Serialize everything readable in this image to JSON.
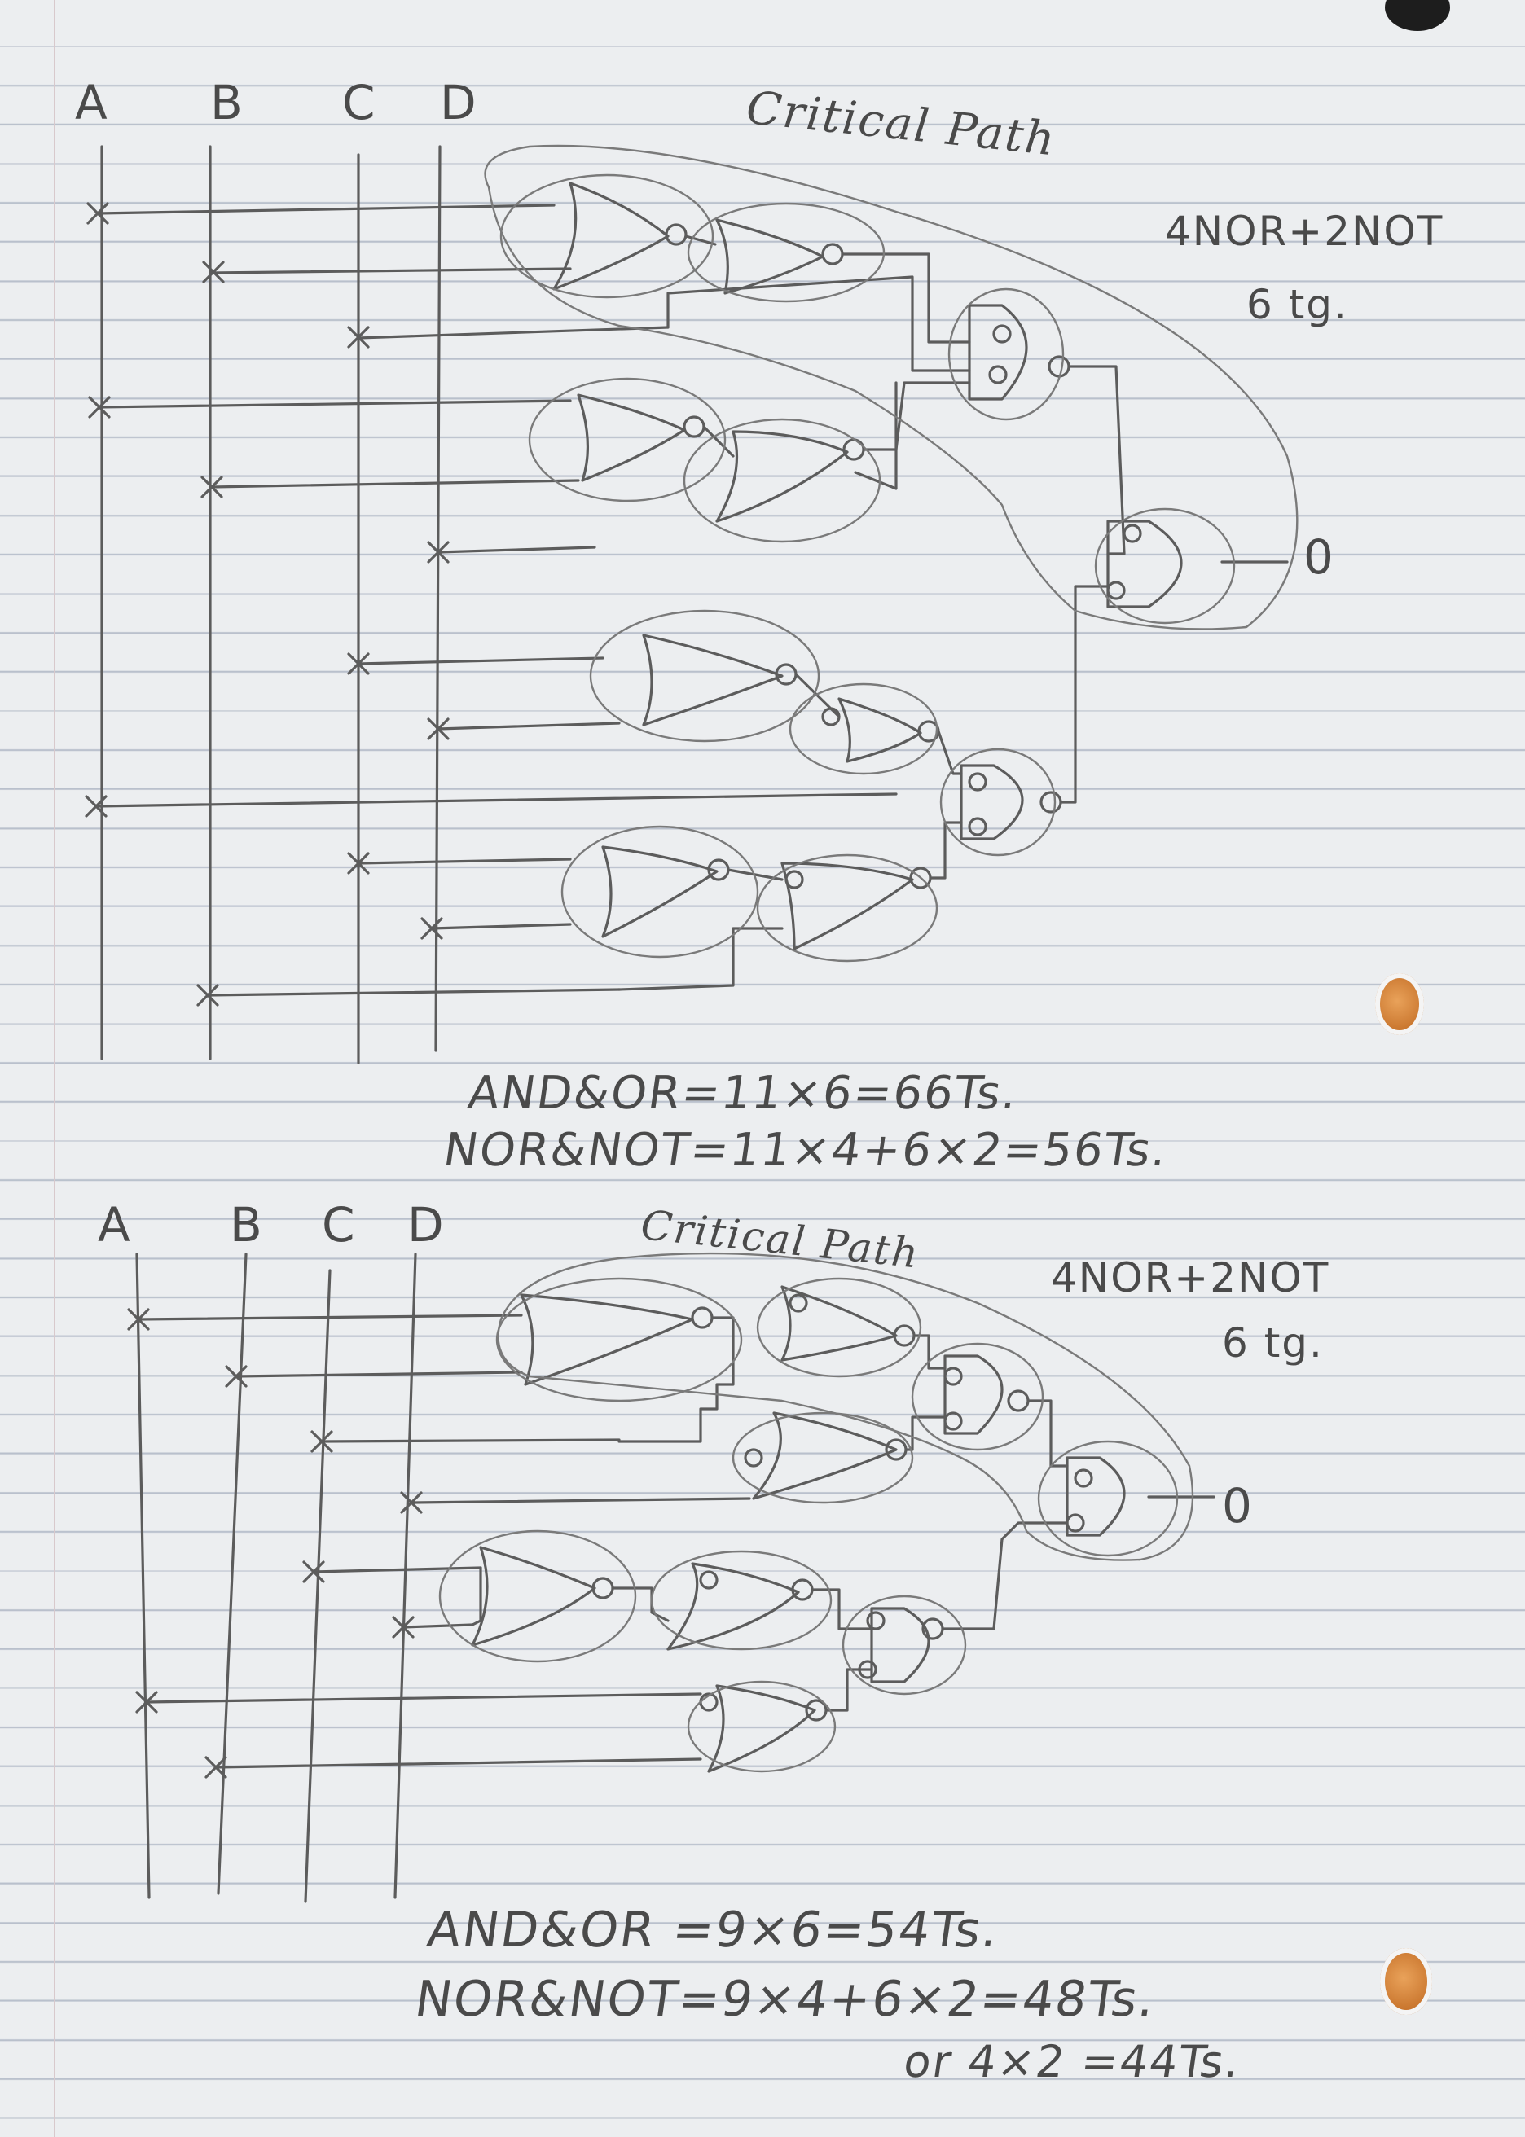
{
  "diagrams": [
    {
      "inputs": [
        "A",
        "B",
        "C",
        "D"
      ],
      "critical_path_label": "Critical Path",
      "gate_count_label": "4NOR+2NOT",
      "tg_label": "6 tg.",
      "output_label": "0",
      "formulas": [
        "AND&OR=11×6=66Ts.",
        "NOR&NOT=11×4+6×2=56Ts."
      ]
    },
    {
      "inputs": [
        "A",
        "B",
        "C",
        "D"
      ],
      "critical_path_label": "Critical Path",
      "gate_count_label": "4NOR+2NOT",
      "tg_label": "6 tg.",
      "output_label": "0",
      "formulas": [
        "AND&OR =9×6=54Ts.",
        "NOR&NOT=9×4+6×2=48Ts.",
        "or 4×2 =44Ts."
      ]
    }
  ],
  "paper": {
    "background": "#eceef0",
    "rule_color": "#b9c0cc",
    "margin_color": "#d8c9cc",
    "pencil_color": "#5c5c5c",
    "hole_color": "#c8742c"
  }
}
